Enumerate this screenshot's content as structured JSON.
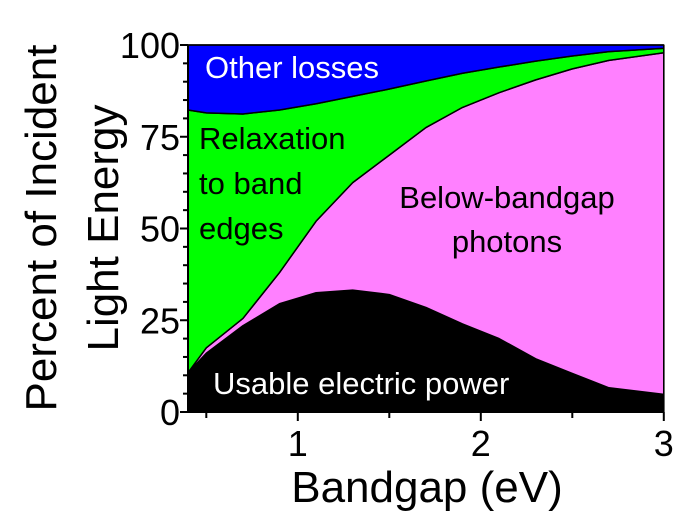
{
  "chart_data": {
    "type": "area",
    "stacked": true,
    "xlabel": "Bandgap (eV)",
    "ylabel": [
      "Percent of Incident",
      "Light Energy"
    ],
    "xlim": [
      0.4,
      3
    ],
    "ylim": [
      0,
      100
    ],
    "xticks": [
      1,
      2,
      3
    ],
    "yticks": [
      0,
      25,
      50,
      75,
      100
    ],
    "grid": false,
    "x": [
      0.4,
      0.5,
      0.7,
      0.9,
      1.1,
      1.3,
      1.5,
      1.7,
      1.9,
      2.1,
      2.3,
      2.5,
      2.7,
      3.0
    ],
    "series": [
      {
        "name": "Usable electric power",
        "color": "#000000",
        "label_color": "#ffffff",
        "values": [
          10.7,
          16,
          23.5,
          29.5,
          32.5,
          33.2,
          32,
          28.5,
          24,
          20,
          14.5,
          10.5,
          6.6,
          4.8
        ]
      },
      {
        "name": "Below-bandgap photons",
        "color": "#ff80ff",
        "label_color": "#000000",
        "values": [
          0,
          1.5,
          2,
          8.5,
          19.5,
          29.3,
          38,
          49,
          59,
          67,
          76,
          83,
          89.2,
          93.1
        ]
      },
      {
        "name": "Relaxation to band edges",
        "color": "#00ff00",
        "label_color": "#000000",
        "values": [
          71.6,
          64,
          55.7,
          44.3,
          32,
          23.5,
          18,
          12.7,
          9.3,
          7,
          5.1,
          3.5,
          2.4,
          1.2
        ]
      },
      {
        "name": "Other losses",
        "color": "#0000ff",
        "label_color": "#ffffff",
        "values": [
          17.7,
          18.5,
          18.8,
          17.7,
          16,
          14,
          12,
          9.8,
          7.7,
          6,
          4.4,
          3,
          1.8,
          0.9
        ]
      }
    ],
    "annotations": {
      "usable": "Usable electric power",
      "below": [
        "Below-bandgap",
        "photons"
      ],
      "relax": [
        "Relaxation",
        "to band",
        "edges"
      ],
      "other": "Other losses"
    }
  }
}
